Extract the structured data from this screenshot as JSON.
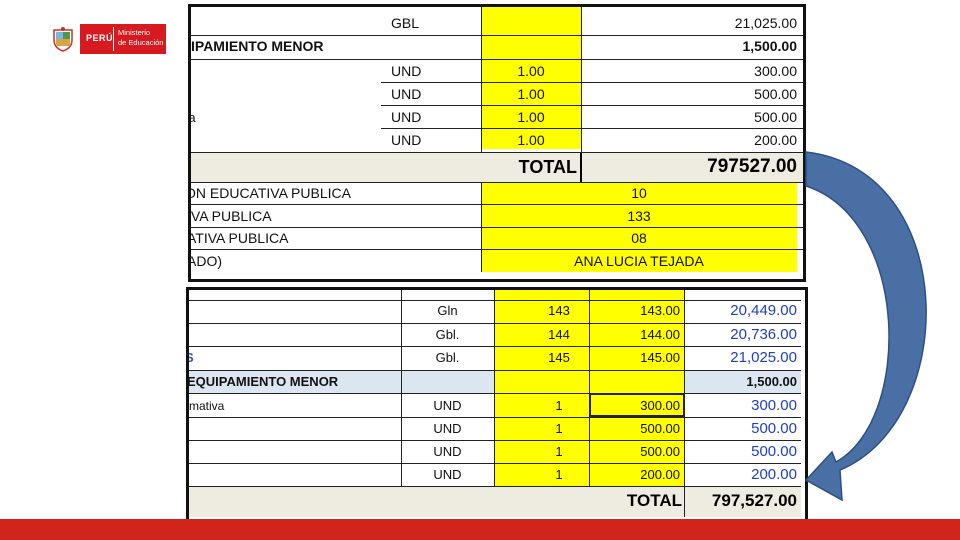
{
  "logo": {
    "country": "PERÚ",
    "ministry_line1": "Ministerio",
    "ministry_line2": "de Educación"
  },
  "sheet_top": {
    "rows": [
      {
        "desc": "",
        "unit": "GBL",
        "qty": "",
        "amount": "21,025.00"
      },
      {
        "desc": "IPAMIENTO MENOR",
        "unit": "",
        "qty": "",
        "amount": "1,500.00"
      },
      {
        "desc": "",
        "unit": "UND",
        "qty": "1.00",
        "amount": "300.00"
      },
      {
        "desc": "",
        "unit": "UND",
        "qty": "1.00",
        "amount": "500.00"
      },
      {
        "desc": "iva",
        "unit": "UND",
        "qty": "1.00",
        "amount": "500.00"
      },
      {
        "desc": "",
        "unit": "UND",
        "qty": "1.00",
        "amount": "200.00"
      }
    ],
    "total_label": "TOTAL",
    "total_value": "797527.00",
    "info_rows": [
      {
        "label": "ON EDUCATIVA PUBLICA",
        "value": "10"
      },
      {
        "label": "IVA PUBLICA",
        "value": "133"
      },
      {
        "label": "ATIVA PUBLICA",
        "value": "08"
      },
      {
        "label": "ADO)",
        "value": "ANA LUCIA TEJADA"
      }
    ]
  },
  "sheet_bottom": {
    "rows": [
      {
        "desc": "",
        "unit": "Gln",
        "num": "143",
        "price": "143.00",
        "amount": "20,449.00"
      },
      {
        "desc": "",
        "unit": "Gbl.",
        "num": "144",
        "price": "144.00",
        "amount": "20,736.00"
      },
      {
        "desc": "S",
        "unit": "Gbl.",
        "num": "145",
        "price": "145.00",
        "amount": "21,025.00"
      },
      {
        "desc": "EQUIPAMIENTO MENOR",
        "unit": "",
        "num": "",
        "price": "",
        "amount": "1,500.00"
      },
      {
        "desc": "rmativa",
        "unit": "UND",
        "num": "1",
        "price": "300.00",
        "amount": "300.00"
      },
      {
        "desc": "",
        "unit": "UND",
        "num": "1",
        "price": "500.00",
        "amount": "500.00"
      },
      {
        "desc": "",
        "unit": "UND",
        "num": "1",
        "price": "500.00",
        "amount": "500.00"
      },
      {
        "desc": "",
        "unit": "UND",
        "num": "1",
        "price": "200.00",
        "amount": "200.00"
      }
    ],
    "total_label": "TOTAL",
    "total_value": "797,527.00"
  },
  "colors": {
    "highlight": "#ffff00",
    "arrow": "#4a6fa5",
    "brand_red": "#d0241d",
    "amount_blue": "#1f3fbf"
  }
}
